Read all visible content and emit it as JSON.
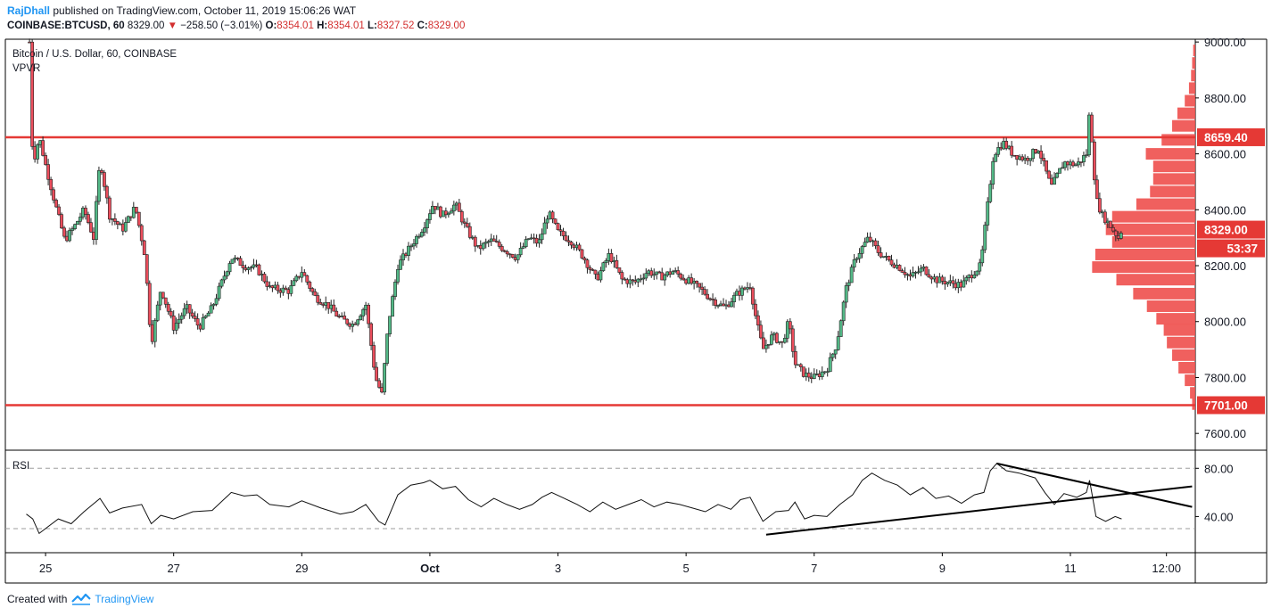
{
  "header": {
    "author": "RajDhall",
    "published_text": "published on TradingView.com, October 11, 2019 15:06:26 WAT",
    "symbol": "COINBASE:BTCUSD, 60",
    "last": "8329.00",
    "change": "−258.50 (−3.01%)",
    "o_label": "O:",
    "o": "8354.01",
    "h_label": "H:",
    "h": "8354.01",
    "l_label": "L:",
    "l": "8327.52",
    "c_label": "C:",
    "c": "8329.00"
  },
  "legend": {
    "main_title": "Bitcoin / U.S. Dollar, 60, COINBASE",
    "indicator": "VPVR",
    "rsi_label": "RSI"
  },
  "footer": {
    "created_with": "Created with",
    "brand": "TradingView"
  },
  "colors": {
    "line_red": "#e53935",
    "up": "#53b987",
    "down": "#eb4d5c",
    "vp": "#ef5350",
    "price_tag_bg": "#e53935",
    "trend": "#000000"
  },
  "chart_data": {
    "type": "candlestick",
    "x_ticks": [
      "25",
      "27",
      "29",
      "Oct",
      "3",
      "5",
      "7",
      "9",
      "11",
      "12:00"
    ],
    "y_ticks": [
      "9000.00",
      "8800.00",
      "8600.00",
      "8400.00",
      "8200.00",
      "8000.00",
      "7800.00",
      "7600.00"
    ],
    "ylim": [
      7540,
      9010
    ],
    "horizontal_lines": [
      {
        "price": 8659.4,
        "label": "8659.40"
      },
      {
        "price": 7701.0,
        "label": "7701.00"
      }
    ],
    "last_price": {
      "price": 8329.0,
      "label": "8329.00",
      "countdown": "53:37"
    },
    "price_path": [
      [
        24.75,
        9000
      ],
      [
        24.8,
        8560
      ],
      [
        24.9,
        8660
      ],
      [
        25.0,
        8560
      ],
      [
        25.15,
        8420
      ],
      [
        25.3,
        8290
      ],
      [
        25.45,
        8340
      ],
      [
        25.6,
        8400
      ],
      [
        25.75,
        8300
      ],
      [
        25.85,
        8580
      ],
      [
        26.0,
        8380
      ],
      [
        26.2,
        8330
      ],
      [
        26.4,
        8410
      ],
      [
        26.55,
        8240
      ],
      [
        26.65,
        7920
      ],
      [
        26.8,
        8120
      ],
      [
        27.0,
        7980
      ],
      [
        27.2,
        8050
      ],
      [
        27.4,
        7980
      ],
      [
        27.6,
        8050
      ],
      [
        27.9,
        8230
      ],
      [
        28.1,
        8200
      ],
      [
        28.3,
        8190
      ],
      [
        28.5,
        8120
      ],
      [
        28.8,
        8110
      ],
      [
        29.0,
        8180
      ],
      [
        29.2,
        8090
      ],
      [
        29.4,
        8060
      ],
      [
        29.6,
        8010
      ],
      [
        29.8,
        7990
      ],
      [
        30.0,
        8060
      ],
      [
        30.15,
        7800
      ],
      [
        30.25,
        7740
      ],
      [
        30.35,
        7990
      ],
      [
        30.5,
        8200
      ],
      [
        30.7,
        8270
      ],
      [
        30.9,
        8340
      ],
      [
        31.05,
        8420
      ],
      [
        31.2,
        8380
      ],
      [
        31.4,
        8420
      ],
      [
        31.55,
        8340
      ],
      [
        31.75,
        8260
      ],
      [
        31.95,
        8290
      ],
      [
        32.15,
        8260
      ],
      [
        32.35,
        8230
      ],
      [
        32.55,
        8300
      ],
      [
        32.7,
        8280
      ],
      [
        32.85,
        8390
      ],
      [
        33.0,
        8320
      ],
      [
        33.2,
        8290
      ],
      [
        33.4,
        8230
      ],
      [
        33.6,
        8150
      ],
      [
        33.8,
        8240
      ],
      [
        34.0,
        8150
      ],
      [
        34.2,
        8140
      ],
      [
        34.4,
        8180
      ],
      [
        34.6,
        8160
      ],
      [
        34.8,
        8180
      ],
      [
        35.0,
        8150
      ],
      [
        35.2,
        8120
      ],
      [
        35.4,
        8080
      ],
      [
        35.6,
        8050
      ],
      [
        35.8,
        8100
      ],
      [
        36.0,
        8130
      ],
      [
        36.1,
        8000
      ],
      [
        36.2,
        7900
      ],
      [
        36.35,
        7950
      ],
      [
        36.5,
        7920
      ],
      [
        36.6,
        8000
      ],
      [
        36.7,
        7850
      ],
      [
        36.85,
        7810
      ],
      [
        37.0,
        7800
      ],
      [
        37.2,
        7830
      ],
      [
        37.35,
        7920
      ],
      [
        37.5,
        8120
      ],
      [
        37.65,
        8230
      ],
      [
        37.85,
        8300
      ],
      [
        38.0,
        8250
      ],
      [
        38.15,
        8220
      ],
      [
        38.3,
        8200
      ],
      [
        38.5,
        8160
      ],
      [
        38.7,
        8190
      ],
      [
        38.9,
        8150
      ],
      [
        39.1,
        8140
      ],
      [
        39.3,
        8130
      ],
      [
        39.5,
        8180
      ],
      [
        39.6,
        8200
      ],
      [
        39.7,
        8400
      ],
      [
        39.8,
        8600
      ],
      [
        39.95,
        8640
      ],
      [
        40.1,
        8600
      ],
      [
        40.3,
        8580
      ],
      [
        40.5,
        8620
      ],
      [
        40.7,
        8480
      ],
      [
        40.9,
        8570
      ],
      [
        41.1,
        8560
      ],
      [
        41.25,
        8600
      ],
      [
        41.3,
        8760
      ],
      [
        41.4,
        8440
      ],
      [
        41.5,
        8380
      ],
      [
        41.6,
        8350
      ],
      [
        41.75,
        8300
      ],
      [
        41.8,
        8329
      ]
    ],
    "rsi": {
      "ylim": [
        10,
        95
      ],
      "ticks": [
        "80.00",
        "40.00"
      ],
      "overbought": 80,
      "oversold": 30,
      "path": [
        [
          24.7,
          42
        ],
        [
          24.8,
          38
        ],
        [
          24.9,
          26
        ],
        [
          25.0,
          30
        ],
        [
          25.2,
          38
        ],
        [
          25.4,
          34
        ],
        [
          25.6,
          44
        ],
        [
          25.85,
          55
        ],
        [
          26.0,
          43
        ],
        [
          26.2,
          47
        ],
        [
          26.5,
          50
        ],
        [
          26.65,
          34
        ],
        [
          26.8,
          41
        ],
        [
          27.0,
          38
        ],
        [
          27.3,
          44
        ],
        [
          27.6,
          45
        ],
        [
          27.9,
          60
        ],
        [
          28.1,
          57
        ],
        [
          28.3,
          58
        ],
        [
          28.5,
          50
        ],
        [
          28.8,
          48
        ],
        [
          29.0,
          53
        ],
        [
          29.3,
          47
        ],
        [
          29.6,
          42
        ],
        [
          29.8,
          44
        ],
        [
          30.0,
          50
        ],
        [
          30.2,
          36
        ],
        [
          30.3,
          33
        ],
        [
          30.5,
          58
        ],
        [
          30.7,
          66
        ],
        [
          30.9,
          68
        ],
        [
          31.0,
          70
        ],
        [
          31.2,
          63
        ],
        [
          31.4,
          65
        ],
        [
          31.6,
          54
        ],
        [
          31.8,
          48
        ],
        [
          32.0,
          55
        ],
        [
          32.2,
          50
        ],
        [
          32.4,
          46
        ],
        [
          32.6,
          50
        ],
        [
          32.75,
          56
        ],
        [
          32.9,
          60
        ],
        [
          33.1,
          55
        ],
        [
          33.3,
          50
        ],
        [
          33.5,
          44
        ],
        [
          33.7,
          52
        ],
        [
          33.9,
          46
        ],
        [
          34.1,
          50
        ],
        [
          34.3,
          54
        ],
        [
          34.5,
          48
        ],
        [
          34.7,
          52
        ],
        [
          34.9,
          50
        ],
        [
          35.1,
          47
        ],
        [
          35.3,
          44
        ],
        [
          35.5,
          50
        ],
        [
          35.7,
          46
        ],
        [
          35.85,
          54
        ],
        [
          36.0,
          56
        ],
        [
          36.2,
          36
        ],
        [
          36.4,
          44
        ],
        [
          36.6,
          45
        ],
        [
          36.7,
          52
        ],
        [
          36.85,
          38
        ],
        [
          37.0,
          41
        ],
        [
          37.2,
          40
        ],
        [
          37.4,
          50
        ],
        [
          37.6,
          58
        ],
        [
          37.75,
          70
        ],
        [
          37.9,
          76
        ],
        [
          38.1,
          70
        ],
        [
          38.3,
          66
        ],
        [
          38.5,
          58
        ],
        [
          38.7,
          64
        ],
        [
          38.9,
          55
        ],
        [
          39.1,
          57
        ],
        [
          39.3,
          51
        ],
        [
          39.5,
          58
        ],
        [
          39.65,
          60
        ],
        [
          39.75,
          78
        ],
        [
          39.85,
          84
        ],
        [
          40.0,
          78
        ],
        [
          40.2,
          76
        ],
        [
          40.45,
          72
        ],
        [
          40.6,
          60
        ],
        [
          40.75,
          50
        ],
        [
          40.9,
          59
        ],
        [
          41.1,
          56
        ],
        [
          41.25,
          60
        ],
        [
          41.3,
          70
        ],
        [
          41.4,
          40
        ],
        [
          41.55,
          36
        ],
        [
          41.7,
          40
        ],
        [
          41.8,
          38
        ]
      ],
      "trendlines": [
        {
          "from": [
            36.25,
            25
          ],
          "to": [
            42.9,
            65
          ]
        },
        {
          "from": [
            39.85,
            84
          ],
          "to": [
            42.9,
            48
          ]
        }
      ]
    },
    "volume_profile": [
      [
        7705,
        0.03
      ],
      [
        7745,
        0.05
      ],
      [
        7790,
        0.1
      ],
      [
        7835,
        0.16
      ],
      [
        7880,
        0.22
      ],
      [
        7925,
        0.27
      ],
      [
        7970,
        0.3
      ],
      [
        8010,
        0.37
      ],
      [
        8055,
        0.46
      ],
      [
        8100,
        0.59
      ],
      [
        8150,
        0.75
      ],
      [
        8195,
        0.98
      ],
      [
        8240,
        0.95
      ],
      [
        8285,
        0.79
      ],
      [
        8330,
        0.85
      ],
      [
        8375,
        0.79
      ],
      [
        8420,
        0.56
      ],
      [
        8465,
        0.43
      ],
      [
        8510,
        0.4
      ],
      [
        8555,
        0.4
      ],
      [
        8600,
        0.47
      ],
      [
        8650,
        0.32
      ],
      [
        8700,
        0.22
      ],
      [
        8745,
        0.17
      ],
      [
        8790,
        0.1
      ],
      [
        8835,
        0.06
      ],
      [
        8880,
        0.04
      ],
      [
        8925,
        0.03
      ],
      [
        8970,
        0.02
      ]
    ]
  }
}
